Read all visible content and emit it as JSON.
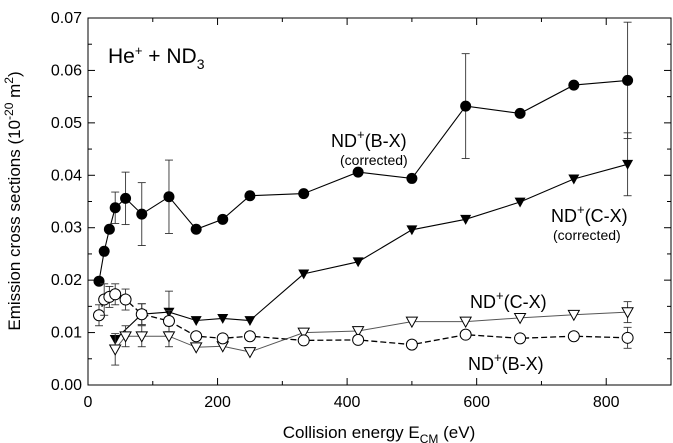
{
  "chart_data": {
    "type": "scatter",
    "title": "",
    "reaction": {
      "base": "He",
      "base_sup": "+",
      "joiner": " + ND",
      "sub": "3"
    },
    "xlabel": {
      "main": "Collision energy E",
      "sub": "CM",
      "unit": " (eV)"
    },
    "ylabel": {
      "main": "Emission cross sections (10",
      "sup": "-20",
      "rest": " m",
      "sup2": "2",
      "end": ")"
    },
    "xlim": [
      0,
      900
    ],
    "ylim": [
      0,
      0.07
    ],
    "xticks": [
      0,
      200,
      400,
      600,
      800
    ],
    "xtick_labels": [
      "0",
      "200",
      "400",
      "600",
      "800"
    ],
    "yticks": [
      0,
      0.01,
      0.02,
      0.03,
      0.04,
      0.05,
      0.06,
      0.07
    ],
    "ytick_labels": [
      "0.00",
      "0.01",
      "0.02",
      "0.03",
      "0.04",
      "0.05",
      "0.06",
      "0.07"
    ],
    "grid": false,
    "series": [
      {
        "name": "ND+(B-X) (corrected)",
        "marker": "circle-filled",
        "line": "solid",
        "x": [
          17,
          25,
          33,
          42,
          58,
          83,
          125,
          167,
          208,
          250,
          333,
          417,
          500,
          583,
          667,
          750,
          833
        ],
        "y": [
          0.0198,
          0.0255,
          0.0297,
          0.0338,
          0.0356,
          0.0326,
          0.0359,
          0.0297,
          0.0316,
          0.0361,
          0.0365,
          0.0406,
          0.0394,
          0.0532,
          0.0518,
          0.0572,
          0.0581
        ],
        "err": [
          0,
          0,
          0,
          0.003,
          0.005,
          0.006,
          0.007,
          0,
          0,
          0,
          0,
          0,
          0,
          0.01,
          0,
          0,
          0.0111
        ]
      },
      {
        "name": "ND+(C-X) (corrected)",
        "marker": "triangle-down-filled",
        "line": "solid",
        "x": [
          42,
          83,
          125,
          167,
          208,
          250,
          333,
          417,
          500,
          583,
          667,
          750,
          833
        ],
        "y": [
          0.0087,
          0.0135,
          0.0139,
          0.0123,
          0.0127,
          0.0123,
          0.0212,
          0.0235,
          0.0296,
          0.0316,
          0.0349,
          0.0393,
          0.0421
        ],
        "err": [
          0,
          0.002,
          0.004,
          0,
          0,
          0,
          0,
          0,
          0,
          0,
          0,
          0,
          0.006
        ]
      },
      {
        "name": "ND+(C-X)",
        "marker": "triangle-down-open",
        "line": "solid-gray",
        "x": [
          42,
          58,
          83,
          125,
          167,
          208,
          250,
          333,
          417,
          500,
          583,
          667,
          750,
          833
        ],
        "y": [
          0.0068,
          0.0093,
          0.0093,
          0.0093,
          0.0072,
          0.0074,
          0.0063,
          0.01,
          0.0103,
          0.0121,
          0.0121,
          0.0128,
          0.0134,
          0.0139
        ],
        "err": [
          0.003,
          0.002,
          0.002,
          0.002,
          0,
          0,
          0,
          0,
          0,
          0,
          0,
          0,
          0,
          0.002
        ]
      },
      {
        "name": "ND+(B-X)",
        "marker": "circle-open",
        "line": "dashed",
        "x": [
          17,
          25,
          33,
          42,
          58,
          83,
          125,
          167,
          208,
          250,
          333,
          417,
          500,
          583,
          667,
          750,
          833
        ],
        "y": [
          0.0133,
          0.0163,
          0.0168,
          0.0173,
          0.0163,
          0.0135,
          0.0122,
          0.0093,
          0.0089,
          0.0093,
          0.0085,
          0.0086,
          0.0077,
          0.0096,
          0.0089,
          0.0093,
          0.009
        ],
        "err": [
          0.002,
          0.003,
          0.002,
          0.002,
          0.002,
          0.002,
          0.002,
          0,
          0,
          0,
          0,
          0,
          0,
          0,
          0,
          0,
          0.002
        ]
      }
    ],
    "labels": [
      {
        "for": "ND+(B-X) (corrected)",
        "main": "ND",
        "sup": "+",
        "rest": "(B-X)",
        "note": "(corrected)"
      },
      {
        "for": "ND+(C-X) (corrected)",
        "main": "ND",
        "sup": "+",
        "rest": "(C-X)",
        "note": "(corrected)"
      },
      {
        "for": "ND+(C-X)",
        "main": "ND",
        "sup": "+",
        "rest": "(C-X)",
        "note": ""
      },
      {
        "for": "ND+(B-X)",
        "main": "ND",
        "sup": "+",
        "rest": "(B-X)",
        "note": ""
      }
    ]
  }
}
